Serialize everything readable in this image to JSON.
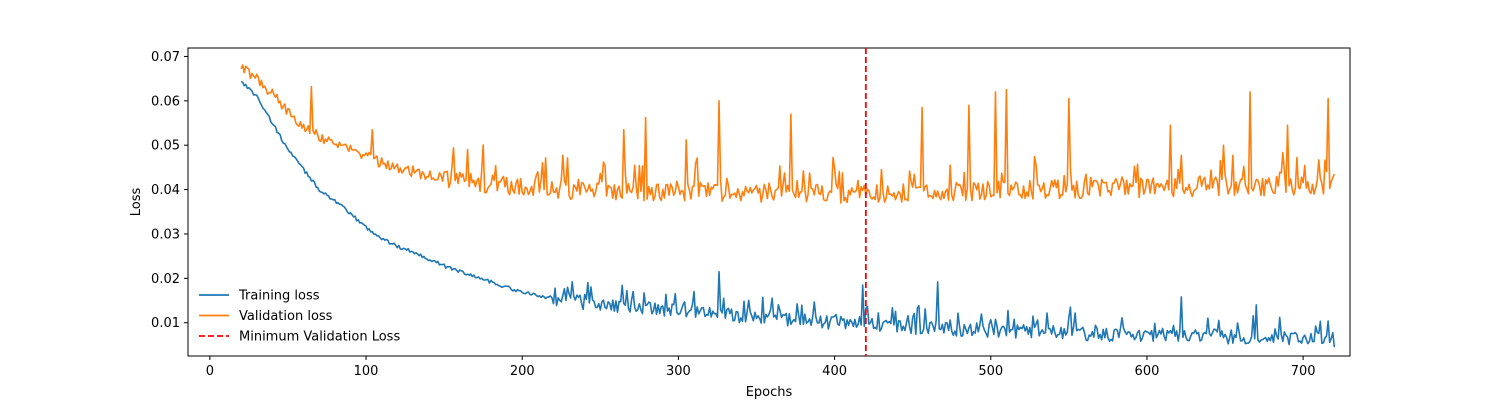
{
  "chart_data": {
    "type": "line",
    "title": "",
    "xlabel": "Epochs",
    "ylabel": "Loss",
    "xlim": [
      -14,
      730
    ],
    "ylim": [
      0.0025,
      0.0719
    ],
    "xticks": [
      0,
      100,
      200,
      300,
      400,
      500,
      600,
      700
    ],
    "yticks": [
      0.01,
      0.02,
      0.03,
      0.04,
      0.05,
      0.06,
      0.07
    ],
    "grid": false,
    "legend_position": "lower-left",
    "x_start": 20,
    "x_end": 720,
    "series": [
      {
        "name": "Training loss",
        "color": "#1f77b4",
        "trend": [
          [
            20,
            0.0645
          ],
          [
            30,
            0.061
          ],
          [
            40,
            0.055
          ],
          [
            50,
            0.049
          ],
          [
            60,
            0.0445
          ],
          [
            70,
            0.04
          ],
          [
            80,
            0.0375
          ],
          [
            90,
            0.0345
          ],
          [
            100,
            0.0315
          ],
          [
            110,
            0.029
          ],
          [
            120,
            0.0272
          ],
          [
            130,
            0.026
          ],
          [
            150,
            0.0228
          ],
          [
            175,
            0.0198
          ],
          [
            200,
            0.0168
          ],
          [
            220,
            0.0155
          ],
          [
            240,
            0.0145
          ],
          [
            260,
            0.0138
          ],
          [
            300,
            0.0128
          ],
          [
            340,
            0.0115
          ],
          [
            380,
            0.0105
          ],
          [
            420,
            0.0095
          ],
          [
            460,
            0.0088
          ],
          [
            500,
            0.0082
          ],
          [
            550,
            0.0076
          ],
          [
            600,
            0.0072
          ],
          [
            650,
            0.0068
          ],
          [
            700,
            0.0064
          ],
          [
            720,
            0.0062
          ]
        ],
        "spikes": [
          [
            326,
            0.0215
          ],
          [
            418,
            0.0185
          ],
          [
            466,
            0.0192
          ],
          [
            551,
            0.0135
          ],
          [
            622,
            0.0158
          ],
          [
            670,
            0.014
          ]
        ],
        "end_value": 0.0045
      },
      {
        "name": "Validation loss",
        "color": "#ff7f0e",
        "trend": [
          [
            20,
            0.0675
          ],
          [
            30,
            0.065
          ],
          [
            40,
            0.0615
          ],
          [
            50,
            0.0575
          ],
          [
            60,
            0.0545
          ],
          [
            70,
            0.052
          ],
          [
            80,
            0.0505
          ],
          [
            90,
            0.049
          ],
          [
            100,
            0.0475
          ],
          [
            110,
            0.046
          ],
          [
            120,
            0.045
          ],
          [
            140,
            0.0432
          ],
          [
            160,
            0.0422
          ],
          [
            180,
            0.0412
          ],
          [
            200,
            0.0405
          ],
          [
            230,
            0.04
          ],
          [
            260,
            0.0398
          ],
          [
            300,
            0.0395
          ],
          [
            340,
            0.0393
          ],
          [
            380,
            0.0392
          ],
          [
            400,
            0.0391
          ],
          [
            420,
            0.0393
          ],
          [
            460,
            0.0395
          ],
          [
            500,
            0.0398
          ],
          [
            560,
            0.0402
          ],
          [
            620,
            0.0405
          ],
          [
            680,
            0.0408
          ],
          [
            720,
            0.041
          ]
        ],
        "spikes": [
          [
            65,
            0.0632
          ],
          [
            104,
            0.0535
          ],
          [
            265,
            0.0535
          ],
          [
            279,
            0.0562
          ],
          [
            305,
            0.0512
          ],
          [
            326,
            0.06
          ],
          [
            372,
            0.057
          ],
          [
            456,
            0.0585
          ],
          [
            486,
            0.059
          ],
          [
            503,
            0.062
          ],
          [
            510,
            0.0625
          ],
          [
            550,
            0.0605
          ],
          [
            615,
            0.0545
          ],
          [
            666,
            0.062
          ],
          [
            690,
            0.0545
          ],
          [
            716,
            0.0605
          ]
        ],
        "end_value": 0.0435
      }
    ],
    "reference_lines": [
      {
        "name": "Minimum Validation Loss",
        "orientation": "vertical",
        "x": 420,
        "color": "#ff0000",
        "style": "dashed"
      }
    ]
  }
}
